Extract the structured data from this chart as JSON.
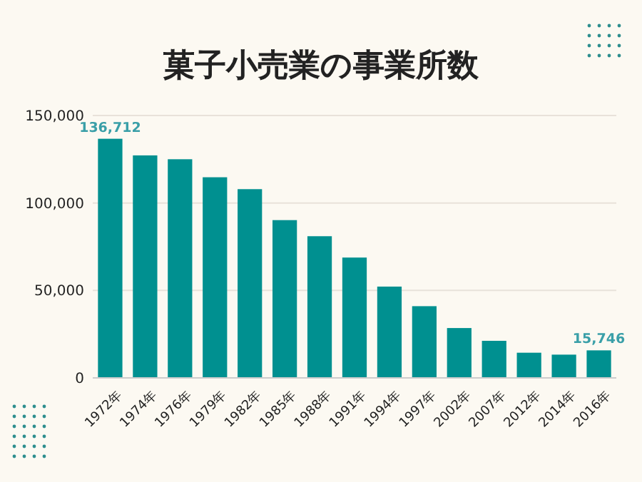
{
  "chart_data": {
    "type": "bar",
    "title": "菓子小売業の事業所数",
    "categories": [
      "1972年",
      "1974年",
      "1976年",
      "1979年",
      "1982年",
      "1985年",
      "1988年",
      "1991年",
      "1994年",
      "1997年",
      "2002年",
      "2007年",
      "2012年",
      "2014年",
      "2016年"
    ],
    "values": [
      136712,
      127200,
      125000,
      114700,
      107900,
      90200,
      81000,
      68800,
      52200,
      41000,
      28500,
      21200,
      14400,
      13300,
      15746
    ],
    "value_labels": [
      "136,712",
      null,
      null,
      null,
      null,
      null,
      null,
      null,
      null,
      null,
      null,
      null,
      null,
      null,
      "15,746"
    ],
    "color": "#009090",
    "ylim": [
      0,
      150000
    ],
    "yticks": [
      {
        "value": 0,
        "label": "0"
      },
      {
        "value": 50000,
        "label": "50,000"
      },
      {
        "value": 100000,
        "label": "100,000"
      },
      {
        "value": 150000,
        "label": "150,000"
      }
    ],
    "grid": "y"
  }
}
